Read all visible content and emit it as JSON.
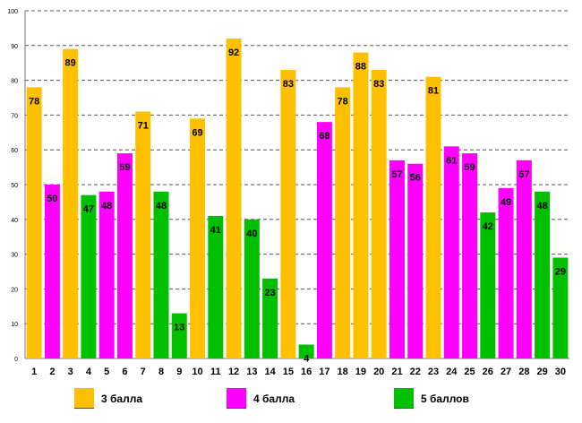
{
  "chart_data": {
    "type": "bar",
    "title": "",
    "xlabel": "",
    "ylabel": "",
    "ylim": [
      0,
      100
    ],
    "yticks": [
      0,
      10,
      20,
      30,
      40,
      50,
      60,
      70,
      80,
      90,
      100
    ],
    "grid": "horizontal-dashed",
    "categories": [
      "1",
      "2",
      "3",
      "4",
      "5",
      "6",
      "7",
      "8",
      "9",
      "10",
      "11",
      "12",
      "13",
      "14",
      "15",
      "16",
      "17",
      "18",
      "19",
      "20",
      "21",
      "22",
      "23",
      "24",
      "25",
      "26",
      "27",
      "28",
      "29",
      "30"
    ],
    "values": [
      78,
      50,
      89,
      47,
      48,
      59,
      71,
      48,
      13,
      69,
      41,
      92,
      40,
      23,
      83,
      4,
      68,
      78,
      88,
      83,
      57,
      56,
      81,
      61,
      59,
      42,
      49,
      57,
      48,
      29
    ],
    "grade_group": [
      3,
      4,
      3,
      5,
      4,
      4,
      3,
      5,
      5,
      3,
      5,
      3,
      5,
      5,
      3,
      5,
      4,
      3,
      3,
      3,
      4,
      4,
      3,
      4,
      4,
      5,
      4,
      4,
      5,
      5
    ],
    "legend": [
      {
        "group": 3,
        "label": "3 балла",
        "color": "#FFC000"
      },
      {
        "group": 4,
        "label": "4 балла",
        "color": "#FF00FF"
      },
      {
        "group": 5,
        "label": "5 баллов",
        "color": "#00C000"
      }
    ]
  }
}
